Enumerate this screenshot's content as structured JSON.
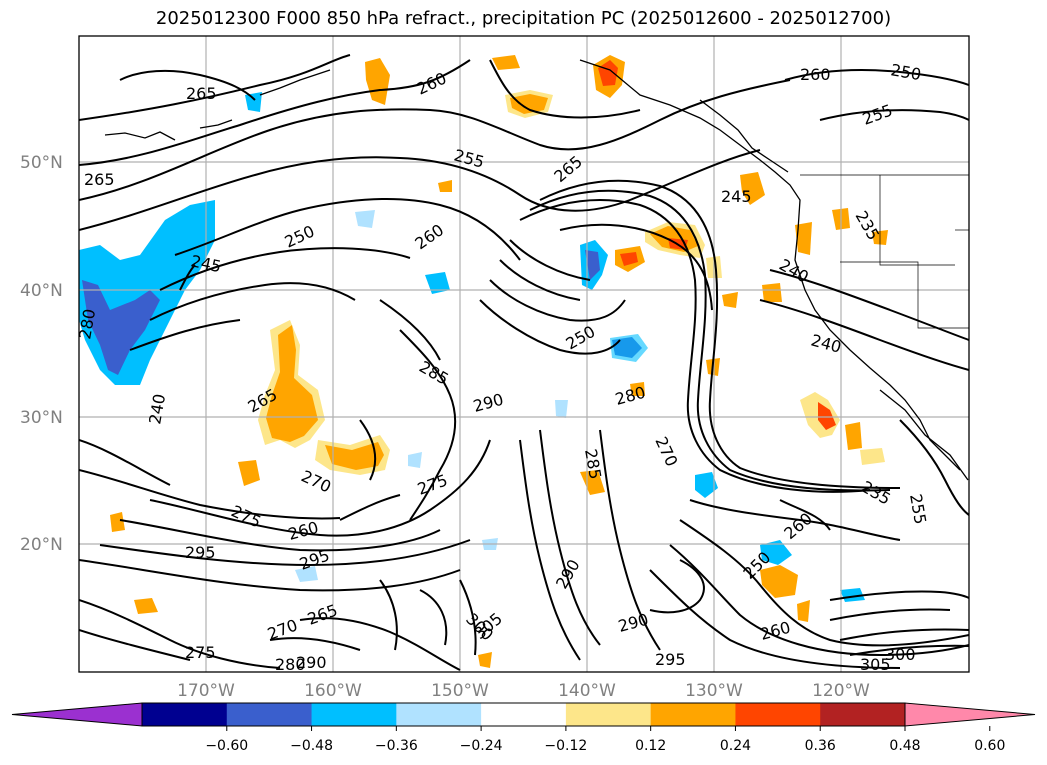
{
  "title": "2025012300 F000 850 hPa refract., precipitation PC (2025012600 - 2025012700)",
  "lat_labels": [
    "50°N",
    "40°N",
    "30°N",
    "20°N"
  ],
  "lon_labels": [
    "170°W",
    "160°W",
    "150°W",
    "140°W",
    "130°W",
    "120°W"
  ],
  "contour_labels": [
    "265",
    "260",
    "250",
    "255",
    "265",
    "245",
    "250",
    "260",
    "245",
    "255",
    "240",
    "260",
    "280",
    "285",
    "290",
    "280",
    "250",
    "285",
    "240",
    "265",
    "270",
    "275",
    "260",
    "295",
    "275",
    "290",
    "270",
    "280",
    "295",
    "235",
    "255",
    "260",
    "250",
    "270",
    "265",
    "250",
    "275",
    "280",
    "300",
    "305",
    "295",
    "290",
    "300",
    "305",
    "235",
    "245",
    "270"
  ],
  "colorbar": {
    "ticks": [
      "−0.60",
      "−0.48",
      "−0.36",
      "−0.24",
      "−0.12",
      "0.12",
      "0.24",
      "0.36",
      "0.48",
      "0.60"
    ],
    "colors": [
      "#9b30d0",
      "#000090",
      "#3a5fcd",
      "#00bfff",
      "#b0e2ff",
      "#ffffff",
      "#fde68a",
      "#ffa500",
      "#ff4500",
      "#b22222",
      "#ff88aa"
    ]
  }
}
